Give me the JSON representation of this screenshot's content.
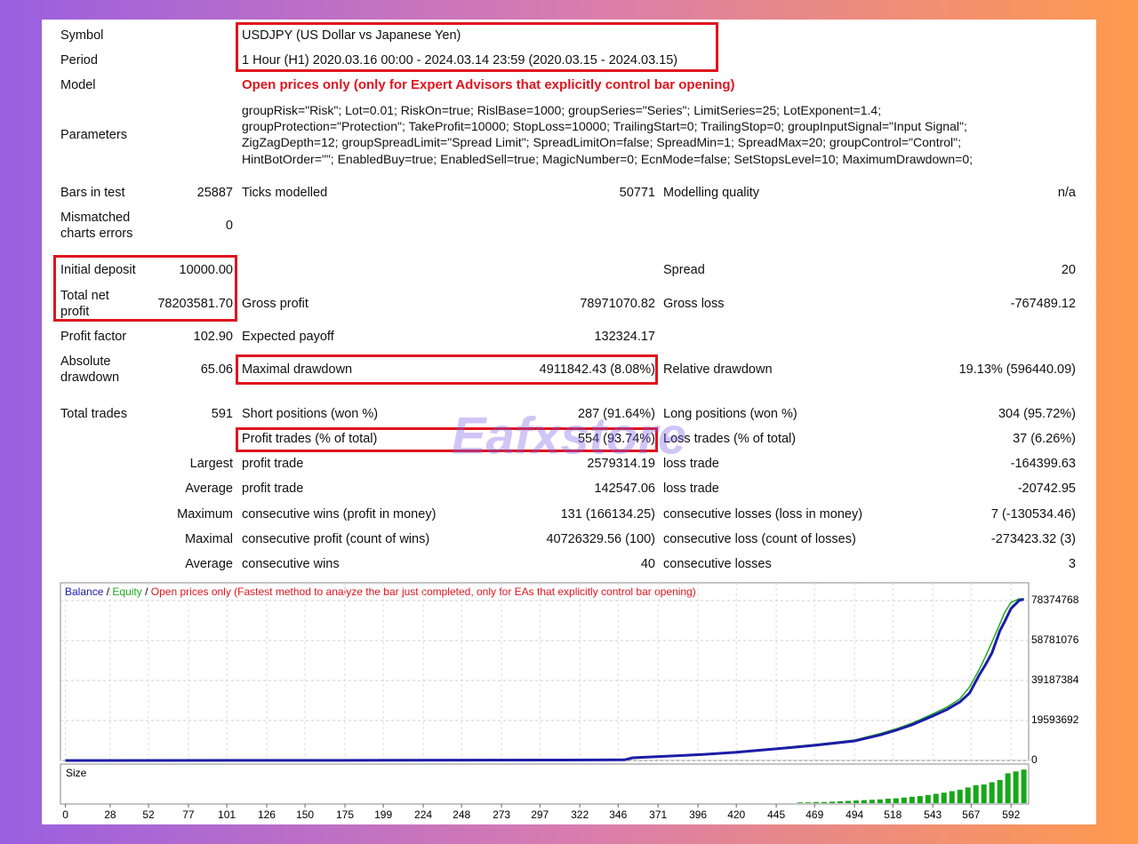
{
  "info": [
    {
      "label": "Symbol",
      "value": "USDJPY (US Dollar vs Japanese Yen)"
    },
    {
      "label": "Period",
      "value": "1 Hour (H1) 2020.03.16 00:00 - 2024.03.14 23:59 (2020.03.15 - 2024.03.15)"
    },
    {
      "label": "Model",
      "value": "Open prices only (only for Expert Advisors that explicitly control bar opening)"
    }
  ],
  "parameters": {
    "label": "Parameters",
    "lines": [
      "groupRisk=\"Risk\"; Lot=0.01; RiskOn=true; RislBase=1000; groupSeries=\"Series\"; LimitSeries=25; LotExponent=1.4;",
      "groupProtection=\"Protection\"; TakeProfit=10000; StopLoss=10000; TrailingStart=0; TrailingStop=0; groupInputSignal=\"Input Signal\";",
      "ZigZagDepth=12; groupSpreadLimit=\"Spread Limit\"; SpreadLimitOn=false; SpreadMin=1; SpreadMax=20; groupControl=\"Control\";",
      "HintBotOrder=\"\"; EnabledBuy=true; EnabledSell=true; MagicNumber=0; EcnMode=false; SetStopsLevel=10; MaximumDrawdown=0;"
    ]
  },
  "stats": [
    {
      "l1": "Bars in test",
      "v1": "25887",
      "l2": "Ticks modelled",
      "v2": "50771",
      "l3": "Modelling quality",
      "v3": "n/a"
    },
    {
      "l1": "Mismatched\ncharts errors",
      "v1": "0"
    },
    {
      "l1": "Initial deposit",
      "v1": "10000.00",
      "l3": "Spread",
      "v3": "20"
    },
    {
      "l1": "Total net\nprofit",
      "v1": "78203581.70",
      "l2": "Gross profit",
      "v2": "78971070.82",
      "l3": "Gross loss",
      "v3": "-767489.12"
    },
    {
      "l1": "Profit factor",
      "v1": "102.90",
      "l2": "Expected payoff",
      "v2": "132324.17"
    },
    {
      "l1": "Absolute\ndrawdown",
      "v1": "65.06",
      "l2": "Maximal drawdown",
      "v2": "4911842.43 (8.08%)",
      "l3": "Relative drawdown",
      "v3": "19.13% (596440.09)"
    },
    {
      "l1": "Total trades",
      "v1": "591",
      "l2": "Short positions (won %)",
      "v2": "287 (91.64%)",
      "l3": "Long positions (won %)",
      "v3": "304 (95.72%)"
    },
    {
      "l2": "Profit trades (% of total)",
      "v2": "554 (93.74%)",
      "l3": "Loss trades (% of total)",
      "v3": "37 (6.26%)"
    },
    {
      "v1": "Largest",
      "l2": "profit trade",
      "v2": "2579314.19",
      "l3": "loss trade",
      "v3": "-164399.63"
    },
    {
      "v1": "Average",
      "l2": "profit trade",
      "v2": "142547.06",
      "l3": "loss trade",
      "v3": "-20742.95"
    },
    {
      "v1": "Maximum",
      "l2": "consecutive wins (profit in money)",
      "v2": "131 (166134.25)",
      "l3": "consecutive losses (loss in money)",
      "v3": "7 (-130534.46)"
    },
    {
      "v1": "Maximal",
      "l2": "consecutive profit (count of wins)",
      "v2": "40726329.56 (100)",
      "l3": "consecutive loss (count of losses)",
      "v3": "-273423.32 (3)"
    },
    {
      "v1": "Average",
      "l2": "consecutive wins",
      "v2": "40",
      "l3": "consecutive losses",
      "v3": "3"
    }
  ],
  "watermark": "Eafxstore",
  "graph": {
    "type": "line",
    "legend": {
      "balance": "Balance",
      "separator": "/",
      "equity": "Equity",
      "model": "Open prices only (Fastest method to analyze the bar just completed, only for EAs that explicitly control bar opening)"
    },
    "xlim": [
      -2,
      603
    ],
    "ylim": [
      0,
      87080000
    ],
    "yticks": [
      0,
      19593692,
      39187384,
      58781076,
      78374768
    ],
    "xticks": [
      0,
      28,
      52,
      77,
      101,
      126,
      150,
      175,
      199,
      224,
      248,
      273,
      297,
      322,
      346,
      371,
      396,
      420,
      445,
      469,
      494,
      518,
      543,
      567,
      592
    ],
    "x": [
      0,
      100,
      200,
      300,
      350,
      355,
      380,
      400,
      420,
      445,
      470,
      494,
      510,
      520,
      530,
      543,
      552,
      560,
      566,
      572,
      576,
      580,
      585,
      588,
      592,
      597,
      600
    ],
    "series": [
      {
        "name": "Balance",
        "color": "#1c1ca8",
        "values": [
          10000,
          50000,
          100000,
          200000,
          300000,
          1300000,
          2200000,
          3000000,
          4000000,
          5700000,
          7500000,
          9600000,
          12500000,
          14800000,
          17500000,
          21800000,
          25000000,
          28700000,
          33000000,
          41800000,
          47000000,
          52700000,
          63600000,
          68000000,
          74500000,
          78400000,
          79000000
        ]
      },
      {
        "name": "Equity",
        "color": "#22aa22",
        "values": [
          10000,
          50000,
          100000,
          200000,
          300000,
          1400000,
          2400000,
          3200000,
          4300000,
          6000000,
          7900000,
          10000000,
          13200000,
          15500000,
          18300000,
          22800000,
          26200000,
          30200000,
          36000000,
          44500000,
          51000000,
          58000000,
          67000000,
          72500000,
          77500000,
          79200000,
          79300000
        ]
      }
    ],
    "size": {
      "label": "Size",
      "ylim": [
        0,
        1
      ],
      "x": [
        460,
        465,
        470,
        475,
        480,
        485,
        490,
        495,
        500,
        505,
        510,
        515,
        520,
        525,
        530,
        535,
        540,
        545,
        550,
        555,
        560,
        565,
        570,
        575,
        580,
        585,
        590,
        595,
        600
      ],
      "values": [
        0.02,
        0.02,
        0.03,
        0.03,
        0.04,
        0.05,
        0.06,
        0.07,
        0.08,
        0.09,
        0.1,
        0.12,
        0.13,
        0.15,
        0.17,
        0.19,
        0.22,
        0.25,
        0.28,
        0.32,
        0.36,
        0.42,
        0.48,
        0.5,
        0.56,
        0.62,
        0.8,
        0.85,
        0.9
      ],
      "color": "#1aa61a"
    }
  }
}
